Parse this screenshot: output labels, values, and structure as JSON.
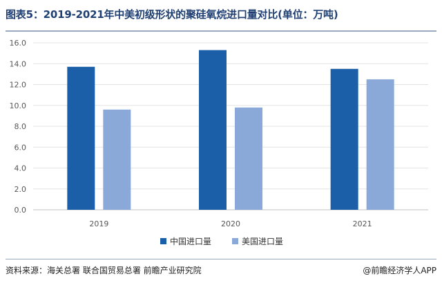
{
  "header": {
    "title": "图表5：2019-2021年中美初级形状的聚硅氧烷进口量对比(单位：万吨)"
  },
  "chart_data": {
    "type": "bar",
    "title": "图表5：2019-2021年中美初级形状的聚硅氧烷进口量对比(单位：万吨)",
    "categories": [
      "2019",
      "2020",
      "2021"
    ],
    "series": [
      {
        "name": "中国进口量",
        "color": "#1a5fa8",
        "values": [
          13.7,
          15.3,
          13.5
        ]
      },
      {
        "name": "美国进口量",
        "color": "#8aa8d8",
        "values": [
          9.6,
          9.8,
          12.5
        ]
      }
    ],
    "ylim": [
      0,
      16
    ],
    "yticks": [
      "0.0",
      "2.0",
      "4.0",
      "6.0",
      "8.0",
      "10.0",
      "12.0",
      "14.0",
      "16.0"
    ],
    "grid": true,
    "legend": "bottom-center"
  },
  "footer": {
    "source": "资料来源：海关总署 联合国贸易总署 前瞻产业研究院",
    "brand": "@前瞻经济学人APP"
  }
}
